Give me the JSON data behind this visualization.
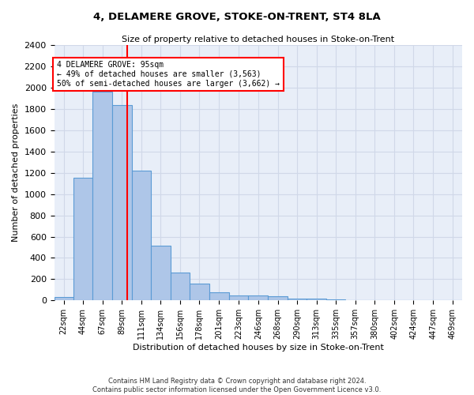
{
  "title1": "4, DELAMERE GROVE, STOKE-ON-TRENT, ST4 8LA",
  "title2": "Size of property relative to detached houses in Stoke-on-Trent",
  "xlabel": "Distribution of detached houses by size in Stoke-on-Trent",
  "ylabel": "Number of detached properties",
  "footer1": "Contains HM Land Registry data © Crown copyright and database right 2024.",
  "footer2": "Contains public sector information licensed under the Open Government Licence v3.0.",
  "annotation_line1": "4 DELAMERE GROVE: 95sqm",
  "annotation_line2": "← 49% of detached houses are smaller (3,563)",
  "annotation_line3": "50% of semi-detached houses are larger (3,662) →",
  "bar_color": "#aec6e8",
  "bar_edge_color": "#5b9bd5",
  "grid_color": "#d0d8e8",
  "bg_color": "#e8eef8",
  "property_line_x": 95,
  "categories": [
    "22sqm",
    "44sqm",
    "67sqm",
    "89sqm",
    "111sqm",
    "134sqm",
    "156sqm",
    "178sqm",
    "201sqm",
    "223sqm",
    "246sqm",
    "268sqm",
    "290sqm",
    "313sqm",
    "335sqm",
    "357sqm",
    "380sqm",
    "402sqm",
    "424sqm",
    "447sqm",
    "469sqm"
  ],
  "bin_edges": [
    11,
    33,
    55,
    78,
    100,
    122,
    145,
    167,
    189,
    212,
    234,
    257,
    279,
    301,
    324,
    346,
    368,
    391,
    413,
    435,
    458,
    480
  ],
  "values": [
    30,
    1150,
    1960,
    1840,
    1220,
    515,
    265,
    155,
    80,
    48,
    45,
    38,
    20,
    18,
    10,
    5,
    5,
    5,
    3,
    2,
    3
  ],
  "ylim": [
    0,
    2400
  ],
  "yticks": [
    0,
    200,
    400,
    600,
    800,
    1000,
    1200,
    1400,
    1600,
    1800,
    2000,
    2200,
    2400
  ]
}
